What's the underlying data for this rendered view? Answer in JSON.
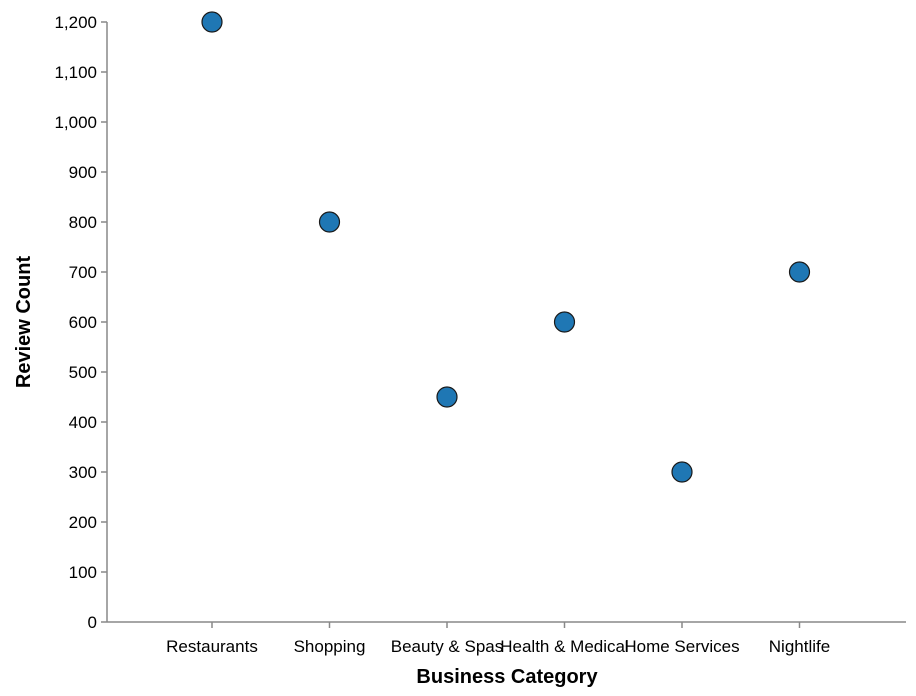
{
  "chart_data": {
    "type": "scatter",
    "categories": [
      "Restaurants",
      "Shopping",
      "Beauty & Spas",
      "Health & Medical",
      "Home Services",
      "Nightlife"
    ],
    "values": [
      1200,
      800,
      450,
      600,
      300,
      700
    ],
    "xlabel": "Business Category",
    "ylabel": "Review Count",
    "ylim": [
      0,
      1200
    ],
    "yticks": [
      0,
      100,
      200,
      300,
      400,
      500,
      600,
      700,
      800,
      900,
      1000,
      1100,
      1200
    ],
    "ytick_labels": [
      "0",
      "100",
      "200",
      "300",
      "400",
      "500",
      "600",
      "700",
      "800",
      "900",
      "1,000",
      "1,100",
      "1,200"
    ],
    "grid": false,
    "point_color": "#1f77b4"
  }
}
